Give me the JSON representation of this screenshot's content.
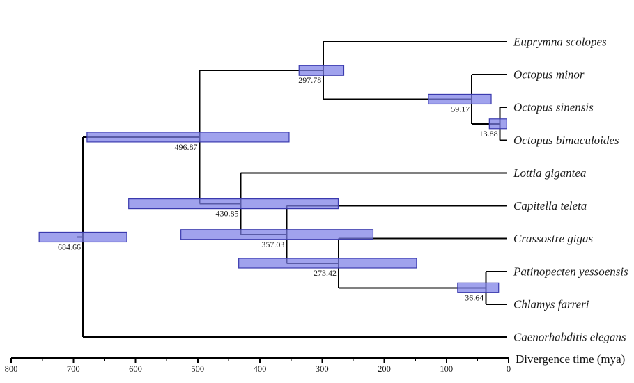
{
  "chart_data": {
    "type": "phylogenetic_tree_chronogram",
    "title": "",
    "xlabel": "Divergence time (mya)",
    "x_axis": {
      "unit": "mya",
      "min": 0,
      "max": 800,
      "direction": "decreasing_to_right",
      "major_ticks": [
        800,
        700,
        600,
        500,
        400,
        300,
        200,
        100,
        0
      ],
      "minor_tick_step": 50
    },
    "colors": {
      "branch": "#000000",
      "bar_fill": "#7b7ee6",
      "bar_stroke": "#3a3aae",
      "text": "#1a1a1a"
    },
    "tips": [
      "Euprymna scolopes",
      "Octopus minor",
      "Octopus sinensis",
      "Octopus bimaculoides",
      "Lottia gigantea",
      "Capitella teleta",
      "Crassostre gigas",
      "Patinopecten yessoensis",
      "Chlamys farreri",
      "Caenorhabditis elegans"
    ],
    "node_ages": [
      684.66,
      496.87,
      430.85,
      357.03,
      297.78,
      273.42,
      59.17,
      36.64,
      13.88
    ],
    "tree": {
      "age": 684.66,
      "hpd": [
        614,
        755
      ],
      "children": [
        {
          "age": 496.87,
          "hpd": [
            353,
            678
          ],
          "children": [
            {
              "age": 297.78,
              "hpd": [
                265,
                337
              ],
              "children": [
                {
                  "tip": "Euprymna scolopes"
                },
                {
                  "age": 59.17,
                  "hpd": [
                    28,
                    129
                  ],
                  "children": [
                    {
                      "tip": "Octopus minor"
                    },
                    {
                      "age": 13.88,
                      "hpd": [
                        3,
                        31
                      ],
                      "children": [
                        {
                          "tip": "Octopus sinensis"
                        },
                        {
                          "tip": "Octopus bimaculoides"
                        }
                      ]
                    }
                  ]
                }
              ]
            },
            {
              "age": 430.85,
              "hpd": [
                274,
                611
              ],
              "children": [
                {
                  "tip": "Lottia gigantea"
                },
                {
                  "age": 357.03,
                  "hpd": [
                    218,
                    527
                  ],
                  "children": [
                    {
                      "tip": "Capitella teleta"
                    },
                    {
                      "age": 273.42,
                      "hpd": [
                        148,
                        434
                      ],
                      "children": [
                        {
                          "tip": "Crassostre gigas"
                        },
                        {
                          "age": 36.64,
                          "hpd": [
                            16,
                            82
                          ],
                          "children": [
                            {
                              "tip": "Patinopecten yessoensis"
                            },
                            {
                              "tip": "Chlamys farreri"
                            }
                          ]
                        }
                      ]
                    }
                  ]
                }
              ]
            }
          ]
        },
        {
          "tip": "Caenorhabditis elegans"
        }
      ]
    }
  }
}
